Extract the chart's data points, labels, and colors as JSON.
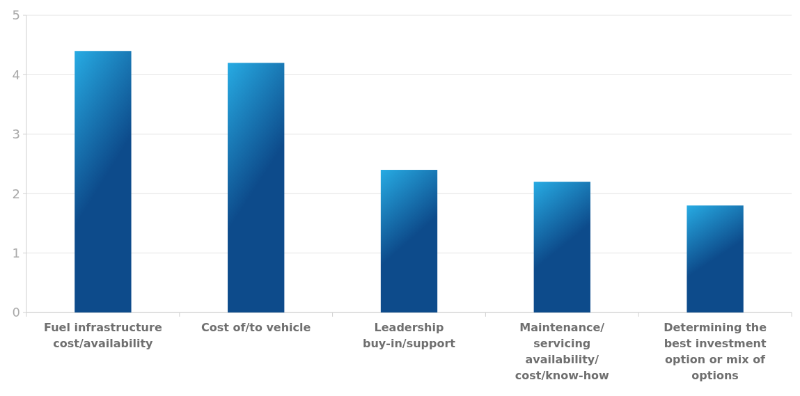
{
  "chart_data": {
    "type": "bar",
    "categories": [
      "Fuel infrastructure cost/availability",
      "Cost of/to vehicle",
      "Leadership buy-in/support",
      "Maintenance/ servicing availability/ cost/know-how",
      "Determining the best investment option or mix of options"
    ],
    "values": [
      4.4,
      4.2,
      2.4,
      2.2,
      1.8
    ],
    "color": "#0d4b8b",
    "ylim": [
      0,
      5
    ],
    "yticks": [
      0,
      1,
      2,
      3,
      4,
      5
    ],
    "grid": "y"
  }
}
